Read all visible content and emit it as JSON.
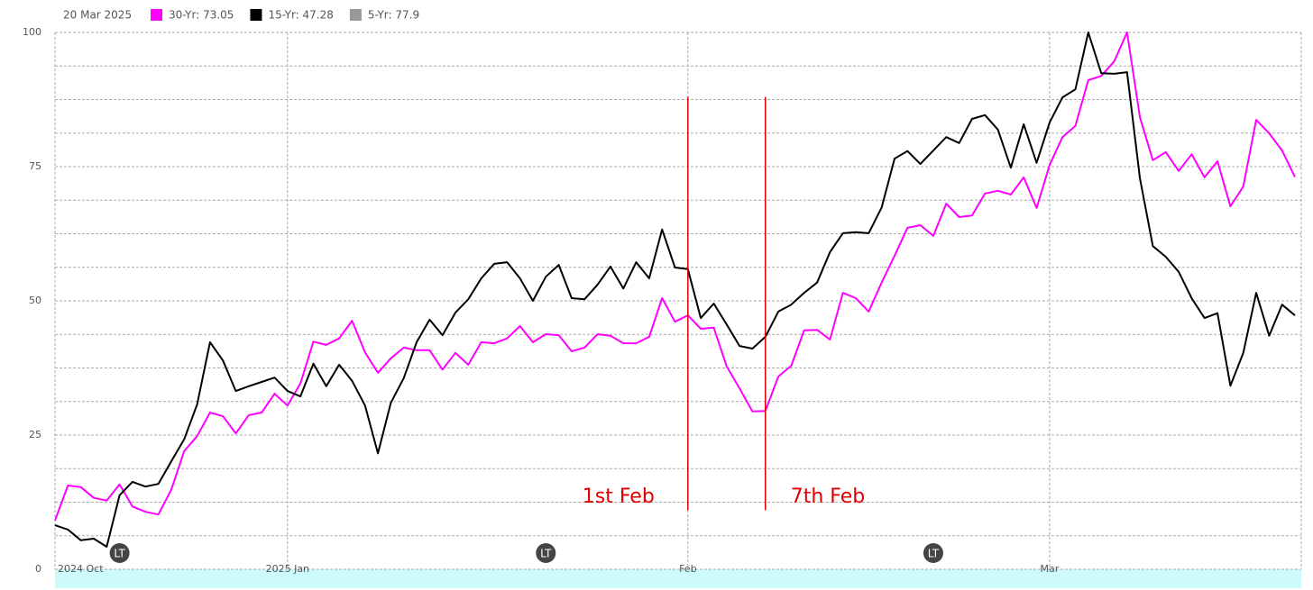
{
  "chart_data": {
    "type": "line",
    "legend_title": "20 Mar 2025",
    "categories": [
      "2024 Oct",
      null,
      null,
      null,
      null,
      null,
      null,
      null,
      null,
      null,
      null,
      null,
      null,
      null,
      null,
      null,
      null,
      null,
      "2025 Jan",
      null,
      null,
      null,
      null,
      null,
      null,
      null,
      null,
      null,
      null,
      null,
      null,
      null,
      null,
      null,
      null,
      null,
      null,
      null,
      null,
      null,
      null,
      null,
      null,
      null,
      null,
      null,
      null,
      null,
      null,
      "Feb",
      null,
      null,
      null,
      null,
      null,
      null,
      null,
      null,
      null,
      null,
      null,
      null,
      null,
      null,
      null,
      null,
      null,
      null,
      null,
      null,
      null,
      null,
      null,
      null,
      null,
      null,
      null,
      "Mar",
      null,
      null,
      null,
      null,
      null,
      null,
      null,
      null,
      null,
      null,
      null,
      null,
      null,
      null,
      null,
      null,
      null,
      null,
      null
    ],
    "series": [
      {
        "name": "30-Yr: 73.05",
        "color": "#ff00ff",
        "values": [
          9.1,
          15.6,
          15.3,
          13.3,
          12.8,
          15.8,
          11.7,
          10.7,
          10.2,
          14.8,
          22.0,
          24.8,
          29.2,
          28.5,
          25.3,
          28.7,
          29.2,
          32.7,
          30.5,
          34.6,
          42.4,
          41.8,
          43.0,
          46.3,
          40.4,
          36.6,
          39.3,
          41.3,
          40.8,
          40.8,
          37.2,
          40.3,
          38.1,
          42.3,
          42.1,
          43.0,
          45.3,
          42.3,
          43.8,
          43.6,
          40.6,
          41.3,
          43.8,
          43.5,
          42.1,
          42.1,
          43.3,
          50.5,
          46.1,
          47.3,
          44.8,
          45.0,
          37.8,
          33.7,
          29.4,
          29.5,
          35.9,
          37.9,
          44.5,
          44.6,
          42.8,
          51.5,
          50.5,
          48.0,
          53.4,
          58.4,
          63.6,
          64.1,
          62.1,
          68.1,
          65.6,
          65.9,
          70.0,
          70.5,
          69.8,
          73.0,
          67.3,
          75.3,
          80.5,
          82.6,
          91.1,
          91.9,
          94.6,
          100,
          84.2,
          76.2,
          77.7,
          74.2,
          77.3,
          73.0,
          76.0,
          67.6,
          71.3,
          83.7,
          81.2,
          78.0,
          73.05
        ]
      },
      {
        "name": "15-Yr: 47.28",
        "color": "#000000",
        "values": [
          8.2,
          7.4,
          5.4,
          5.7,
          4.2,
          13.8,
          16.3,
          15.4,
          15.9,
          20.1,
          24.2,
          30.7,
          42.3,
          38.9,
          33.2,
          34.1,
          34.9,
          35.7,
          33.2,
          32.2,
          38.3,
          34.1,
          38.1,
          35.1,
          30.5,
          21.6,
          31.0,
          35.6,
          42.3,
          46.5,
          43.6,
          47.8,
          50.3,
          54.2,
          56.9,
          57.2,
          54.2,
          50.0,
          54.5,
          56.7,
          50.5,
          50.3,
          53.0,
          56.4,
          52.3,
          57.2,
          54.2,
          63.3,
          56.2,
          55.9,
          46.8,
          49.5,
          45.6,
          41.6,
          41.1,
          43.3,
          48.0,
          49.3,
          51.5,
          53.4,
          59.1,
          62.6,
          62.8,
          62.6,
          67.4,
          76.5,
          77.9,
          75.5,
          78.0,
          80.5,
          79.4,
          83.9,
          84.6,
          81.9,
          74.8,
          82.9,
          75.7,
          83.2,
          87.9,
          89.4,
          100,
          92.4,
          92.3,
          92.6,
          72.8,
          60.2,
          58.2,
          55.4,
          50.5,
          46.8,
          47.7,
          34.2,
          40.3,
          51.5,
          43.5,
          49.3,
          47.28
        ]
      },
      {
        "name": "5-Yr: 77.9",
        "color": "#999999",
        "hidden": true
      }
    ],
    "ylim": [
      0,
      100
    ],
    "yticks": [
      0,
      25,
      50,
      75,
      100
    ],
    "y_minor_ticks": [
      6.25,
      12.5,
      18.75,
      31.25,
      37.5,
      43.75,
      56.25,
      62.5,
      68.75,
      81.25,
      87.5,
      93.75
    ],
    "grid": true,
    "annotations": [
      {
        "text": "1st Feb",
        "x": 49,
        "color": "#e00000"
      },
      {
        "text": "7th Feb",
        "x": 55,
        "color": "#e00000"
      }
    ],
    "markers": [
      {
        "label": "LT",
        "x": 5
      },
      {
        "label": "LT",
        "x": 38
      },
      {
        "label": "LT",
        "x": 68
      }
    ]
  }
}
